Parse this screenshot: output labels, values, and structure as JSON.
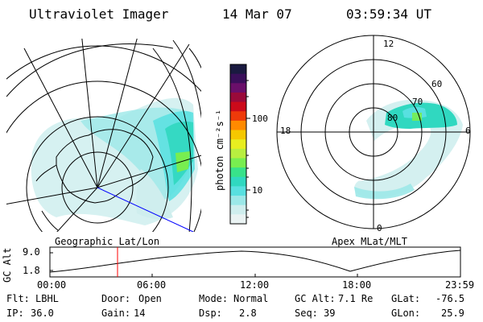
{
  "header": {
    "instrument": "Ultraviolet Imager",
    "date": "14 Mar 07",
    "time": "03:59:34 UT"
  },
  "left_panel": {
    "label": "Geographic Lat/Lon"
  },
  "right_panel": {
    "label": "Apex MLat/MLT",
    "mlt_labels": [
      "12",
      "18",
      "6",
      "0"
    ],
    "lat_labels": [
      "60",
      "70",
      "80"
    ]
  },
  "colorbar": {
    "unit_label": "photon cm⁻²s⁻¹",
    "ticks": [
      "100",
      "10"
    ],
    "colors": [
      "#1a1a40",
      "#3a0f5a",
      "#6a0f6a",
      "#9a0a3a",
      "#cc0a1a",
      "#ee3a0a",
      "#ff8a00",
      "#f5c800",
      "#e8ee20",
      "#b8ee40",
      "#78ee50",
      "#38e28a",
      "#30d8c0",
      "#58e0e0",
      "#9ce8e8",
      "#cfeeee",
      "#eaf3f3"
    ]
  },
  "timeline": {
    "y_axis_label": "GC Alt",
    "y_ticks": [
      "9.0",
      "1.8"
    ],
    "x_ticks": [
      "00:00",
      "06:00",
      "12:00",
      "18:00",
      "23:59"
    ],
    "current_time_marker": "03:59"
  },
  "status": {
    "filter": {
      "label": "Flt:",
      "value": "LBHL"
    },
    "ip": {
      "label": "IP:",
      "value": "36.0"
    },
    "door": {
      "label": "Door:",
      "value": "Open"
    },
    "gain": {
      "label": "Gain:",
      "value": "14"
    },
    "mode": {
      "label": "Mode:",
      "value": "Normal"
    },
    "dsp": {
      "label": "Dsp:",
      "value": "2.8"
    },
    "gc_alt": {
      "label": "GC Alt:",
      "value": "7.1 Re"
    },
    "seq": {
      "label": "Seq:",
      "value": "39"
    },
    "glat": {
      "label": "GLat:",
      "value": "-76.5"
    },
    "glon": {
      "label": "GLon:",
      "value": "25.9"
    }
  }
}
